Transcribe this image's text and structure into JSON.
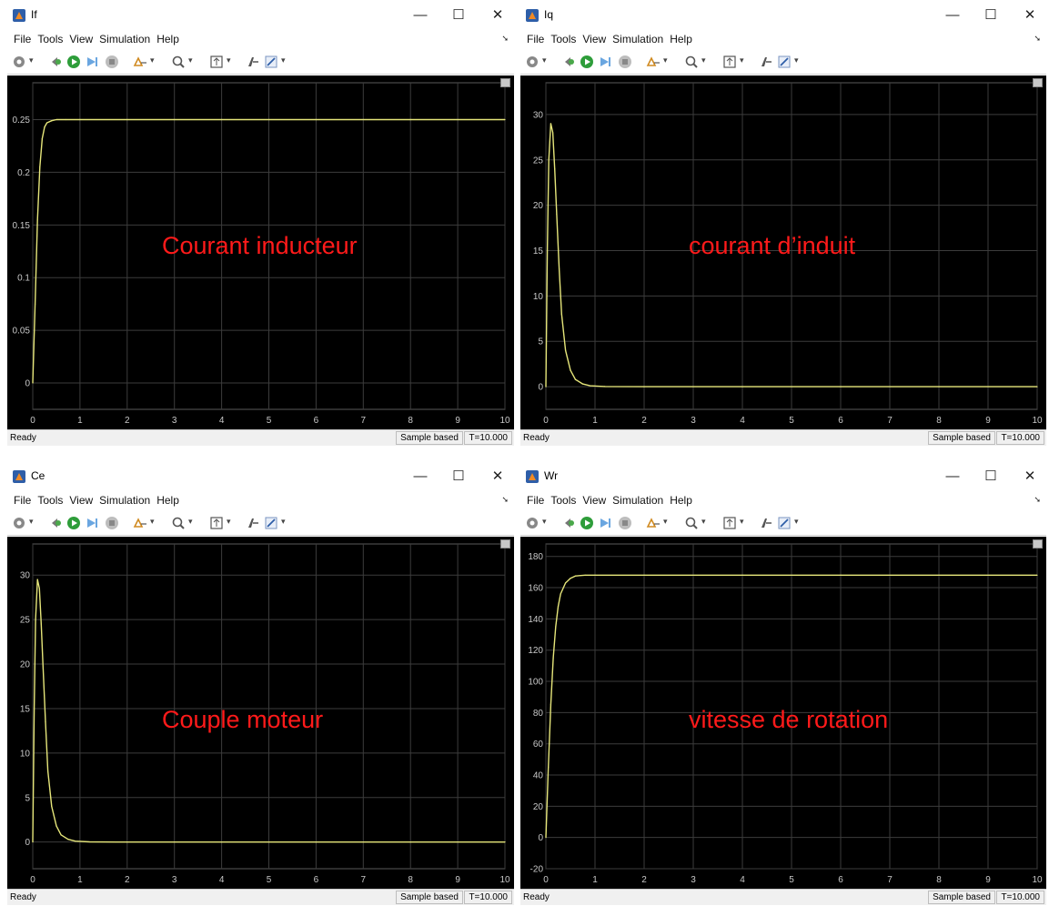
{
  "windows": [
    {
      "title": "If",
      "menu": [
        "File",
        "Tools",
        "View",
        "Simulation",
        "Help"
      ],
      "overlay_label": "Courant inducteur",
      "status": {
        "ready": "Ready",
        "mode": "Sample based",
        "time": "T=10.000"
      }
    },
    {
      "title": "Iq",
      "menu": [
        "File",
        "Tools",
        "View",
        "Simulation",
        "Help"
      ],
      "overlay_label": "courant d’induit",
      "status": {
        "ready": "Ready",
        "mode": "Sample based",
        "time": "T=10.000"
      }
    },
    {
      "title": "Ce",
      "menu": [
        "File",
        "Tools",
        "View",
        "Simulation",
        "Help"
      ],
      "overlay_label": "Couple moteur",
      "status": {
        "ready": "Ready",
        "mode": "Sample based",
        "time": "T=10.000"
      }
    },
    {
      "title": "Wr",
      "menu": [
        "File",
        "Tools",
        "View",
        "Simulation",
        "Help"
      ],
      "overlay_label": "vitesse de rotation",
      "status": {
        "ready": "Ready",
        "mode": "Sample based",
        "time": "T=10.000"
      }
    }
  ],
  "window_controls": {
    "minimize": "—",
    "maximize": "☐",
    "close": "✕"
  },
  "icons": [
    "settings-gear-icon",
    "step-back-icon",
    "run-icon",
    "step-forward-icon",
    "stop-icon",
    "highlight-icon",
    "zoom-icon",
    "autoscale-icon",
    "trigger-icon",
    "edit-icon"
  ],
  "colors": {
    "plot_bg": "#000000",
    "grid": "#3c3c3c",
    "trace": "#e6e67a",
    "label": "#ff1a1a"
  },
  "chart_data": [
    {
      "type": "line",
      "title": "",
      "xlim": [
        0,
        10
      ],
      "ylim": [
        -0.025,
        0.285
      ],
      "xticks": [
        "0",
        "1",
        "2",
        "3",
        "4",
        "5",
        "6",
        "7",
        "8",
        "9",
        "10"
      ],
      "yticks": [
        {
          "v": 0,
          "t": "0"
        },
        {
          "v": 0.05,
          "t": "0.05"
        },
        {
          "v": 0.1,
          "t": "0.1"
        },
        {
          "v": 0.15,
          "t": "0.15"
        },
        {
          "v": 0.2,
          "t": "0.2"
        },
        {
          "v": 0.25,
          "t": "0.25"
        }
      ],
      "x": [
        0,
        0.05,
        0.1,
        0.15,
        0.2,
        0.25,
        0.3,
        0.4,
        0.5,
        0.7,
        1,
        2,
        4,
        6,
        8,
        10
      ],
      "y": [
        0,
        0.075,
        0.155,
        0.205,
        0.232,
        0.243,
        0.247,
        0.249,
        0.25,
        0.25,
        0.25,
        0.25,
        0.25,
        0.25,
        0.25,
        0.25
      ]
    },
    {
      "type": "line",
      "title": "",
      "xlim": [
        0,
        10
      ],
      "ylim": [
        -2.5,
        33.5
      ],
      "xticks": [
        "0",
        "1",
        "2",
        "3",
        "4",
        "5",
        "6",
        "7",
        "8",
        "9",
        "10"
      ],
      "yticks": [
        {
          "v": 0,
          "t": "0"
        },
        {
          "v": 5,
          "t": "5"
        },
        {
          "v": 10,
          "t": "10"
        },
        {
          "v": 15,
          "t": "15"
        },
        {
          "v": 20,
          "t": "20"
        },
        {
          "v": 25,
          "t": "25"
        },
        {
          "v": 30,
          "t": "30"
        }
      ],
      "x": [
        0,
        0.03,
        0.06,
        0.1,
        0.14,
        0.18,
        0.22,
        0.27,
        0.32,
        0.4,
        0.5,
        0.6,
        0.75,
        0.9,
        1.2,
        2,
        4,
        6,
        8,
        10
      ],
      "y": [
        0,
        15,
        25,
        29,
        28,
        24,
        19,
        13,
        8,
        4,
        1.8,
        0.8,
        0.3,
        0.1,
        0.02,
        0,
        0,
        0,
        0,
        0
      ]
    },
    {
      "type": "line",
      "title": "",
      "xlim": [
        0,
        10
      ],
      "ylim": [
        -3,
        33.5
      ],
      "xticks": [
        "0",
        "1",
        "2",
        "3",
        "4",
        "5",
        "6",
        "7",
        "8",
        "9",
        "10"
      ],
      "yticks": [
        {
          "v": 0,
          "t": "0"
        },
        {
          "v": 5,
          "t": "5"
        },
        {
          "v": 10,
          "t": "10"
        },
        {
          "v": 15,
          "t": "15"
        },
        {
          "v": 20,
          "t": "20"
        },
        {
          "v": 25,
          "t": "25"
        },
        {
          "v": 30,
          "t": "30"
        }
      ],
      "x": [
        0,
        0.03,
        0.06,
        0.1,
        0.14,
        0.18,
        0.22,
        0.27,
        0.32,
        0.4,
        0.5,
        0.6,
        0.75,
        0.9,
        1.2,
        2,
        4,
        6,
        8,
        10
      ],
      "y": [
        0,
        15,
        25,
        29.5,
        28.5,
        24.5,
        19.5,
        13.5,
        8,
        4,
        1.8,
        0.8,
        0.3,
        0.1,
        0.02,
        0,
        0,
        0,
        0,
        0
      ]
    },
    {
      "type": "line",
      "title": "",
      "xlim": [
        0,
        10
      ],
      "ylim": [
        -20,
        188
      ],
      "xticks": [
        "0",
        "1",
        "2",
        "3",
        "4",
        "5",
        "6",
        "7",
        "8",
        "9",
        "10"
      ],
      "yticks": [
        {
          "v": -20,
          "t": "-20"
        },
        {
          "v": 0,
          "t": "0"
        },
        {
          "v": 20,
          "t": "20"
        },
        {
          "v": 40,
          "t": "40"
        },
        {
          "v": 60,
          "t": "60"
        },
        {
          "v": 80,
          "t": "80"
        },
        {
          "v": 100,
          "t": "100"
        },
        {
          "v": 120,
          "t": "120"
        },
        {
          "v": 140,
          "t": "140"
        },
        {
          "v": 160,
          "t": "160"
        },
        {
          "v": 180,
          "t": "180"
        }
      ],
      "x": [
        0,
        0.05,
        0.1,
        0.15,
        0.2,
        0.25,
        0.3,
        0.4,
        0.5,
        0.6,
        0.8,
        1,
        2,
        4,
        6,
        8,
        10
      ],
      "y": [
        0,
        45,
        85,
        115,
        135,
        148,
        156,
        163,
        166,
        167.5,
        168,
        168,
        168,
        168,
        168,
        168,
        168
      ]
    }
  ]
}
